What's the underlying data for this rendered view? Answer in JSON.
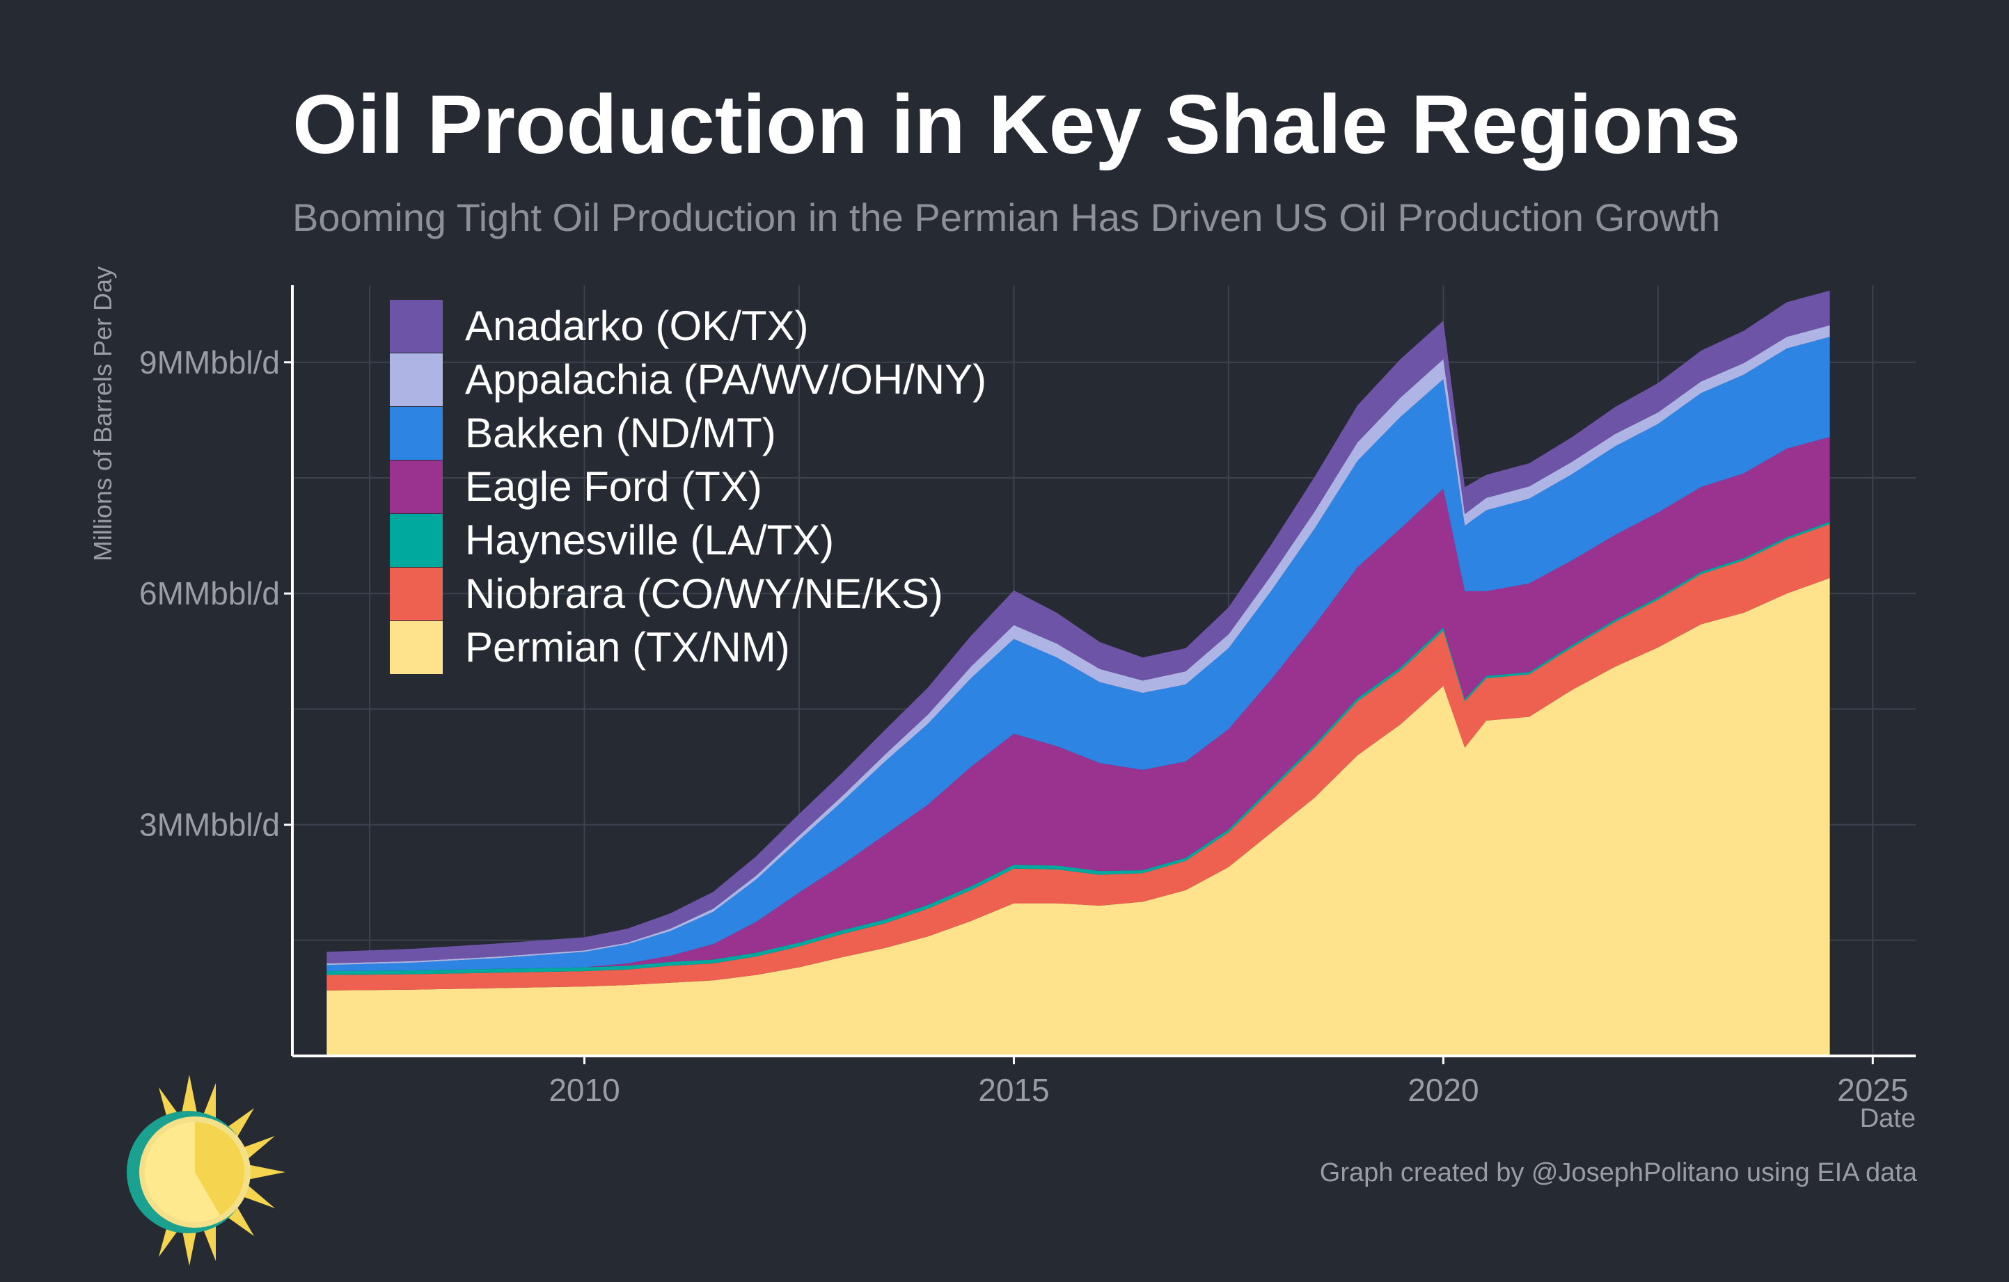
{
  "title": "Oil Production in Key Shale Regions",
  "subtitle": "Booming Tight Oil Production in the Permian Has Driven US Oil Production Growth",
  "credit": "Graph created by @JosephPolitano using EIA data",
  "colors": {
    "background": "#252a33",
    "grid": "#3d424c",
    "axis": "#ffffff",
    "tick_text": "#9a9da6"
  },
  "chart_data": {
    "type": "area",
    "stacked": true,
    "xlabel": "Date",
    "ylabel": "Millions of Barrels Per Day",
    "xlim": [
      2006.6,
      2025.5
    ],
    "ylim": [
      0,
      10.0
    ],
    "x_ticks": [
      2010,
      2015,
      2020,
      2025
    ],
    "x_tick_labels": [
      "2010",
      "2015",
      "2020",
      "2025"
    ],
    "y_ticks": [
      3,
      6,
      9
    ],
    "y_tick_labels": [
      "3MMbbl/d",
      "6MMbbl/d",
      "9MMbbl/d"
    ],
    "legend_position": "top-left",
    "x": [
      2007.0,
      2008.0,
      2009.0,
      2010.0,
      2010.5,
      2011.0,
      2011.5,
      2012.0,
      2012.5,
      2013.0,
      2013.5,
      2014.0,
      2014.5,
      2015.0,
      2015.5,
      2016.0,
      2016.5,
      2017.0,
      2017.5,
      2018.0,
      2018.5,
      2019.0,
      2019.5,
      2020.0,
      2020.25,
      2020.5,
      2021.0,
      2021.5,
      2022.0,
      2022.5,
      2023.0,
      2023.5,
      2024.0,
      2024.5
    ],
    "series": [
      {
        "name": "Permian (TX/NM)",
        "color": "#ffe38c",
        "values": [
          0.85,
          0.86,
          0.88,
          0.9,
          0.92,
          0.95,
          0.98,
          1.05,
          1.15,
          1.28,
          1.4,
          1.55,
          1.75,
          1.98,
          1.98,
          1.95,
          2.0,
          2.15,
          2.45,
          2.9,
          3.35,
          3.9,
          4.3,
          4.8,
          4.0,
          4.35,
          4.4,
          4.75,
          5.05,
          5.3,
          5.6,
          5.75,
          6.0,
          6.2
        ]
      },
      {
        "name": "Niobrara (CO/WY/NE/KS)",
        "color": "#ee6050",
        "values": [
          0.2,
          0.2,
          0.2,
          0.2,
          0.2,
          0.22,
          0.22,
          0.24,
          0.27,
          0.3,
          0.32,
          0.36,
          0.4,
          0.45,
          0.44,
          0.4,
          0.37,
          0.38,
          0.45,
          0.55,
          0.65,
          0.7,
          0.7,
          0.72,
          0.6,
          0.55,
          0.55,
          0.55,
          0.58,
          0.62,
          0.65,
          0.68,
          0.7,
          0.7
        ]
      },
      {
        "name": "Haynesville (LA/TX)",
        "color": "#00a99d",
        "values": [
          0.05,
          0.05,
          0.05,
          0.05,
          0.05,
          0.05,
          0.05,
          0.05,
          0.05,
          0.05,
          0.05,
          0.05,
          0.05,
          0.05,
          0.05,
          0.05,
          0.04,
          0.04,
          0.04,
          0.04,
          0.04,
          0.04,
          0.04,
          0.04,
          0.03,
          0.03,
          0.03,
          0.03,
          0.03,
          0.03,
          0.03,
          0.03,
          0.03,
          0.03
        ]
      },
      {
        "name": "Eagle Ford (TX)",
        "color": "#9a3290",
        "values": [
          0.0,
          0.0,
          0.0,
          0.0,
          0.03,
          0.08,
          0.2,
          0.4,
          0.65,
          0.85,
          1.1,
          1.3,
          1.55,
          1.7,
          1.55,
          1.4,
          1.3,
          1.25,
          1.3,
          1.4,
          1.55,
          1.7,
          1.8,
          1.8,
          1.4,
          1.1,
          1.15,
          1.1,
          1.1,
          1.1,
          1.1,
          1.1,
          1.15,
          1.1
        ]
      },
      {
        "name": "Bakken (ND/MT)",
        "color": "#2e84e3",
        "values": [
          0.08,
          0.1,
          0.14,
          0.2,
          0.25,
          0.32,
          0.42,
          0.55,
          0.68,
          0.82,
          0.95,
          1.05,
          1.15,
          1.23,
          1.15,
          1.05,
          1.0,
          1.0,
          1.05,
          1.15,
          1.25,
          1.38,
          1.45,
          1.42,
          0.85,
          1.05,
          1.1,
          1.12,
          1.15,
          1.15,
          1.22,
          1.28,
          1.3,
          1.3
        ]
      },
      {
        "name": "Appalachia (PA/WV/OH/NY)",
        "color": "#aeb4e4",
        "values": [
          0.02,
          0.02,
          0.02,
          0.02,
          0.02,
          0.03,
          0.04,
          0.05,
          0.06,
          0.07,
          0.09,
          0.12,
          0.15,
          0.18,
          0.18,
          0.17,
          0.16,
          0.17,
          0.18,
          0.2,
          0.22,
          0.24,
          0.25,
          0.26,
          0.15,
          0.16,
          0.16,
          0.16,
          0.16,
          0.15,
          0.15,
          0.15,
          0.15,
          0.15
        ]
      },
      {
        "name": "Anadarko (OK/TX)",
        "color": "#6e54a6",
        "values": [
          0.15,
          0.16,
          0.17,
          0.17,
          0.18,
          0.2,
          0.22,
          0.25,
          0.28,
          0.3,
          0.32,
          0.35,
          0.4,
          0.45,
          0.4,
          0.35,
          0.3,
          0.3,
          0.35,
          0.4,
          0.45,
          0.48,
          0.5,
          0.5,
          0.35,
          0.3,
          0.3,
          0.32,
          0.35,
          0.38,
          0.4,
          0.42,
          0.45,
          0.45
        ]
      }
    ]
  }
}
